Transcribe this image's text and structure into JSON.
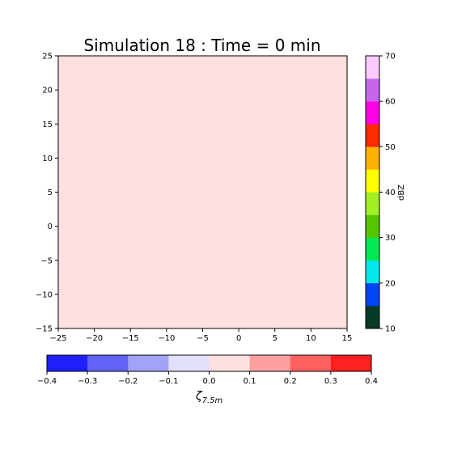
{
  "chart_data": [
    {
      "type": "heatmap",
      "title": "Simulation 18 : Time = 0 min",
      "xlabel": "",
      "ylabel": "",
      "xlim": [
        -25,
        15
      ],
      "ylim": [
        -15,
        25
      ],
      "xticks": [
        -25,
        -20,
        -15,
        -10,
        -5,
        0,
        5,
        10,
        15
      ],
      "xtick_labels": [
        "−25",
        "−20",
        "−15",
        "−10",
        "−5",
        "0",
        "5",
        "10",
        "15"
      ],
      "yticks": [
        -15,
        -10,
        -5,
        0,
        5,
        10,
        15,
        20,
        25
      ],
      "ytick_labels": [
        "−15",
        "−10",
        "−5",
        "0",
        "5",
        "10",
        "15",
        "20",
        "25"
      ],
      "fill_color": "#ffe0e0",
      "field_value_range": [
        0.0,
        0.1
      ],
      "grid": false
    },
    {
      "type": "colorbar",
      "orientation": "vertical",
      "label": "dBZ",
      "range": [
        10,
        70
      ],
      "ticks": [
        10,
        20,
        30,
        40,
        50,
        60,
        70
      ],
      "tick_labels": [
        "10",
        "20",
        "30",
        "40",
        "50",
        "60",
        "70"
      ],
      "colors": [
        "#073b25",
        "#0046f6",
        "#00e8ea",
        "#00e852",
        "#56c601",
        "#a2ef22",
        "#fefd00",
        "#ffb300",
        "#ff2a00",
        "#ff00e8",
        "#c566e9",
        "#fbcafc"
      ]
    },
    {
      "type": "colorbar",
      "orientation": "horizontal",
      "label": "ζ",
      "label_subscript": "7.5m",
      "range": [
        -0.4,
        0.4
      ],
      "ticks": [
        -0.4,
        -0.3,
        -0.2,
        -0.1,
        0.0,
        0.1,
        0.2,
        0.3,
        0.4
      ],
      "tick_labels": [
        "−0.4",
        "−0.3",
        "−0.2",
        "−0.1",
        "0.0",
        "0.1",
        "0.2",
        "0.3",
        "0.4"
      ],
      "colors": [
        "#2020fa",
        "#6262f7",
        "#a2a2f7",
        "#e0e0fb",
        "#ffe0e0",
        "#ffa0a0",
        "#ff6060",
        "#ff2020"
      ]
    }
  ]
}
